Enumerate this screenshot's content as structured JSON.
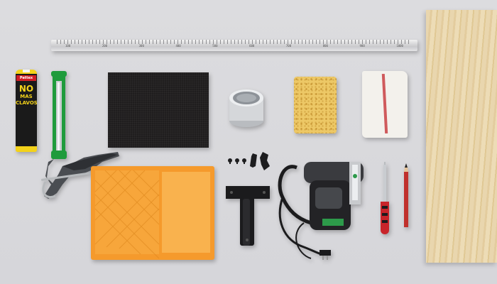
{
  "scene": {
    "description_items": [
      "ruler",
      "plywood",
      "adhesive",
      "caulking-gun",
      "sandpaper",
      "varnish-can",
      "sponge",
      "cloth",
      "screws",
      "hinge",
      "paint-tray",
      "jigsaw",
      "screwdriver",
      "pencil"
    ]
  },
  "adhesive": {
    "brand": "Pattex",
    "line1": "NO",
    "line2": "MAS",
    "line3": "CLAVOS"
  },
  "ruler": {
    "numbers": [
      "100",
      "200",
      "300",
      "400",
      "500",
      "600",
      "700",
      "800",
      "900",
      "1000"
    ]
  },
  "colors": {
    "background": "#d9d9dc",
    "tray": "#f59a2c",
    "gun_green": "#1f9b3c",
    "adhesive_yellow": "#f3d21a",
    "sponge": "#edc866",
    "plywood": "#e9d6ae"
  }
}
